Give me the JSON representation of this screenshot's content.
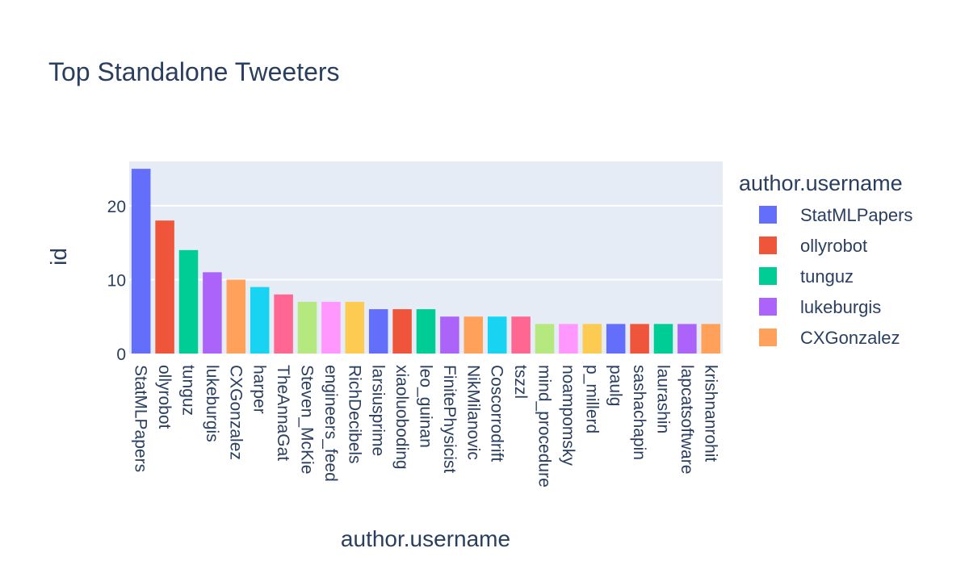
{
  "chart_data": {
    "type": "bar",
    "title": "Top Standalone Tweeters",
    "xlabel": "author.username",
    "ylabel": "id",
    "ylim": [
      0,
      26
    ],
    "yticks": [
      0,
      10,
      20
    ],
    "grid": true,
    "legend": {
      "title": "author.username",
      "placement": "right",
      "entries": [
        "StatMLPapers",
        "ollyrobot",
        "tunguz",
        "lukeburgis",
        "CXGonzalez"
      ]
    },
    "palette": [
      "#636efa",
      "#EF553B",
      "#00cc96",
      "#ab63fa",
      "#FFA15A",
      "#19d3f3",
      "#FF6692",
      "#B6E880",
      "#FF97FF",
      "#FECB52"
    ],
    "plot_bg": "#e5ecf6",
    "categories": [
      "StatMLPapers",
      "ollyrobot",
      "tunguz",
      "lukeburgis",
      "CXGonzalez",
      "harper",
      "TheAnnaGat",
      "Steven_McKie",
      "engineers_feed",
      "RichDecibels",
      "larsiusprime",
      "xiaoluoboding",
      "leo_guinan",
      "FinitePhysicist",
      "NikMilanovic",
      "Coscorrodrift",
      "tszzl",
      "mind_procedure",
      "noampomsky",
      "p_millerd",
      "paulg",
      "sashachapin",
      "laurashin",
      "lapcatsoftware",
      "krishnanrohit"
    ],
    "values": [
      25,
      18,
      14,
      11,
      10,
      9,
      8,
      7,
      7,
      7,
      6,
      6,
      6,
      5,
      5,
      5,
      5,
      4,
      4,
      4,
      4,
      4,
      4,
      4,
      4
    ]
  }
}
